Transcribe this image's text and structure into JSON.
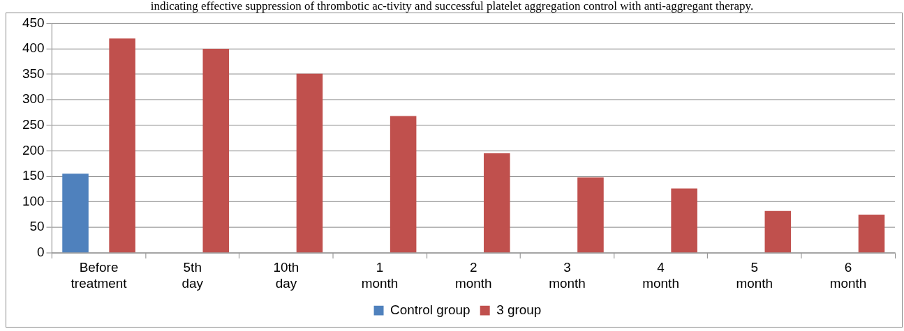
{
  "chart_data": {
    "type": "bar",
    "annotations": [
      "indicating effective suppression of thrombotic ac-tivity and successful platelet aggregation control with anti-aggregant therapy."
    ],
    "categories": [
      "Before treatment",
      "5th day",
      "10th day",
      "1 month",
      "2 month",
      "3 month",
      "4 month",
      "5 month",
      "6 month"
    ],
    "series": [
      {
        "name": "Control group",
        "color": "#4f81bd",
        "values": [
          155,
          null,
          null,
          null,
          null,
          null,
          null,
          null,
          null
        ]
      },
      {
        "name": "3 group",
        "color": "#c0504d",
        "values": [
          420,
          400,
          351,
          268,
          195,
          148,
          126,
          82,
          75
        ]
      }
    ],
    "ylim": [
      0,
      450
    ],
    "yticks": [
      0,
      50,
      100,
      150,
      200,
      250,
      300,
      350,
      400,
      450
    ],
    "grid": "y",
    "legend": "bottom"
  }
}
